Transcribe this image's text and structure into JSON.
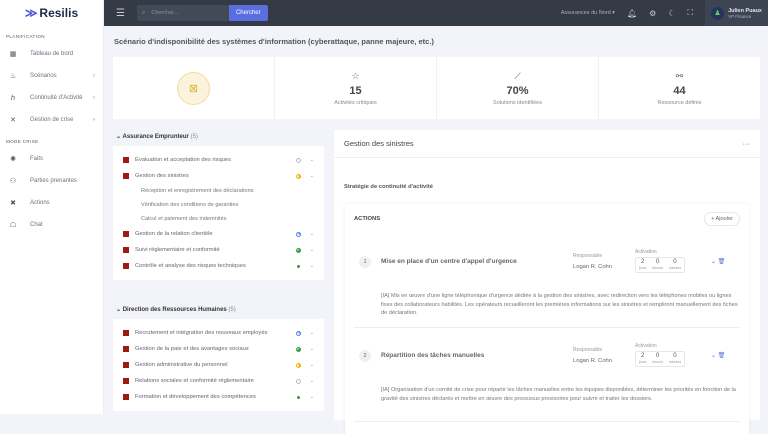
{
  "brand": "Resilis",
  "sidebar": {
    "sections": [
      {
        "title": "PLANIFICATION",
        "items": [
          {
            "label": "Tableau de bord",
            "icon": "dashboard-icon",
            "sub": false
          },
          {
            "label": "Scénarios",
            "icon": "flame-icon",
            "sub": true
          },
          {
            "label": "Continuité d'Activité",
            "icon": "continuity-icon",
            "sub": true
          },
          {
            "label": "Gestion de crise",
            "icon": "tools-icon",
            "sub": true
          }
        ]
      },
      {
        "title": "MODE CRISE",
        "items": [
          {
            "label": "Faits",
            "icon": "loader-icon",
            "sub": false
          },
          {
            "label": "Parties prenantes",
            "icon": "people-icon",
            "sub": false
          },
          {
            "label": "Actions",
            "icon": "actions-icon",
            "sub": false
          },
          {
            "label": "Chat",
            "icon": "chat-icon",
            "sub": false
          }
        ]
      }
    ]
  },
  "topbar": {
    "search_placeholder": "Chercher...",
    "search_button": "Chercher",
    "org": "Assurances du Nord",
    "user_name": "Julien Puaux",
    "user_role": "VP Finance"
  },
  "page_title": "Scénario d'indisponibilité des systèmes d'information (cyberattaque, panne majeure, etc.)",
  "stats": [
    {
      "value": "15",
      "label": "Activités critiques",
      "icon": "star-icon"
    },
    {
      "value": "70%",
      "label": "Solutions identifiées",
      "icon": "chart-line-icon"
    },
    {
      "value": "44",
      "label": "Ressource définie",
      "icon": "resource-icon"
    }
  ],
  "groups": [
    {
      "name": "Assurance Emprunteur",
      "count": "(5)",
      "items": [
        {
          "label": "Évaluation et acceptation des risques",
          "status": "empty",
          "subs": []
        },
        {
          "label": "Gestion des sinistres",
          "status": "half-yellow",
          "subs": [
            "Réception et enregistrement des déclarations",
            "Vérification des conditions de garanties",
            "Calcul et paiement des indemnités"
          ]
        },
        {
          "label": "Gestion de la relation clientèle",
          "status": "quarter-blue",
          "subs": []
        },
        {
          "label": "Suivi réglementaire et conformité",
          "status": "three-quarter-green",
          "subs": []
        },
        {
          "label": "Contrôle et analyse des risques techniques",
          "status": "full-green",
          "subs": []
        }
      ]
    },
    {
      "name": "Direction des Ressources Humaines",
      "count": "(5)",
      "items": [
        {
          "label": "Recrutement et intégration des nouveaux employés",
          "status": "quarter-blue",
          "subs": []
        },
        {
          "label": "Gestion de la paie et des avantages sociaux",
          "status": "three-quarter-green",
          "subs": []
        },
        {
          "label": "Gestion administrative du personnel",
          "status": "half-yellow",
          "subs": []
        },
        {
          "label": "Relations sociales et conformité réglementaire",
          "status": "empty",
          "subs": []
        },
        {
          "label": "Formation et développement des compétences",
          "status": "full-green",
          "subs": []
        }
      ]
    }
  ],
  "detail": {
    "title": "Gestion des sinistres",
    "strategy_label": "Stratégie de continuité d'activité",
    "actions_title": "ACTIONS",
    "add_label": "+ Ajouter",
    "responsable_label": "Responsable",
    "activation_label": "Activation",
    "units": [
      "jours",
      "heures",
      "minutes"
    ],
    "actions": [
      {
        "num": "1",
        "title": "Mise en place d'un centre d'appel d'urgence",
        "responsable": "Logan R. Cohn",
        "activation": [
          "2",
          "0",
          "0"
        ],
        "description": "[IA] Mis en œuvre d'une ligne téléphonique d'urgence dédiée à la gestion des sinistres, avec redirection vers les téléphones mobiles ou lignes fixes des collaborateurs habilités. Les opérateurs recueilleront les premières informations sur les sinistres et rempliront manuellement des fiches de déclaration."
      },
      {
        "num": "2",
        "title": "Répartition des tâches manuelles",
        "responsable": "Logan R. Cohn",
        "activation": [
          "2",
          "0",
          "0"
        ],
        "description": "[IA] Organisation d'un comité de crise pour répartir les tâches manuelles entre les équipes disponibles, déterminer les priorités en fonction de la gravité des sinistres déclarés et mettre en œuvre des processus provisoires pour suivre et traiter les dossiers."
      }
    ]
  },
  "colors": {
    "accent": "#5b6ee1",
    "critical": "#a01a12",
    "topbar": "#343a46"
  }
}
